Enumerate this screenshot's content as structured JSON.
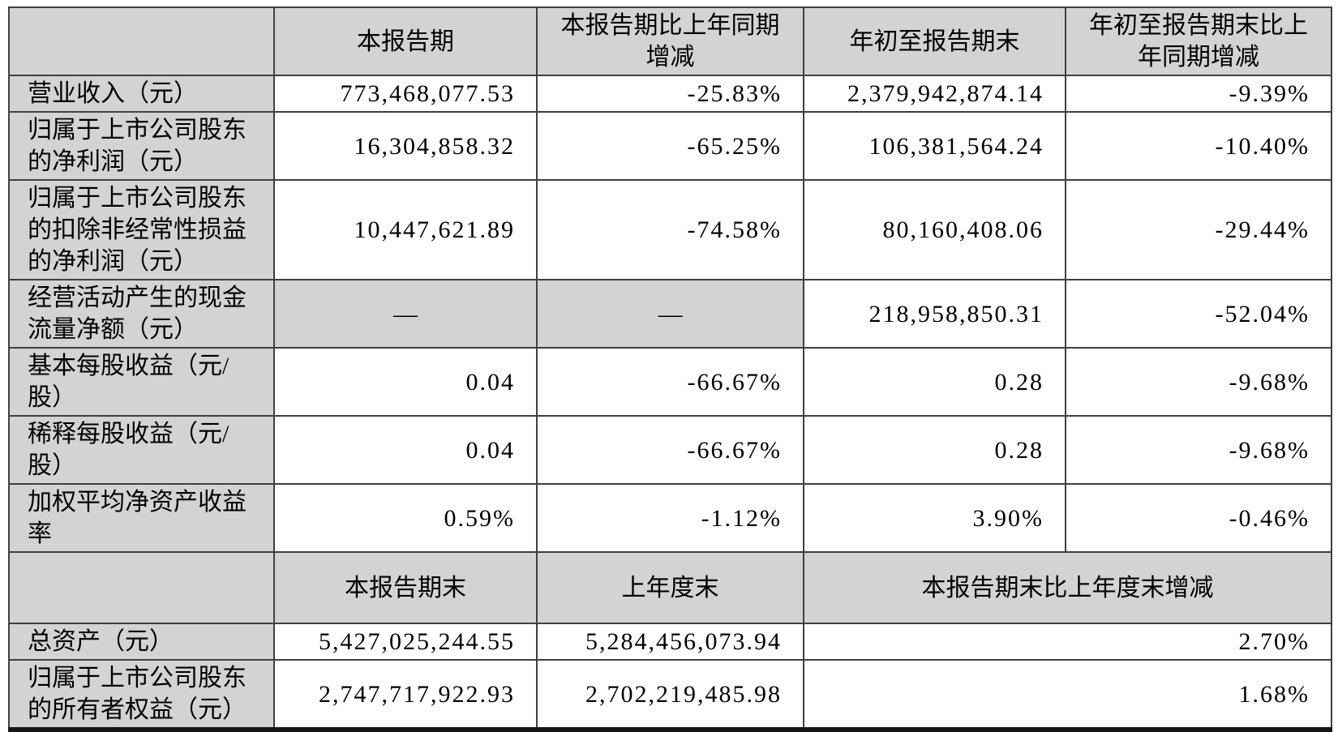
{
  "colors": {
    "header_background": "#d3d3d3",
    "grid_border": "#404040",
    "bottom_border": "#161616",
    "cell_background": "#ffffff",
    "text": "#000000"
  },
  "table": {
    "header_period": {
      "blank": "",
      "current_period": "本报告期",
      "current_period_yoy_change": "本报告期比上年同期\n增减",
      "ytd": "年初至报告期末",
      "ytd_yoy_change": "年初至报告期末比上\n年同期增减"
    },
    "period_rows": [
      {
        "label": "营业收入（元）",
        "current": "773,468,077.53",
        "current_change": "-25.83%",
        "ytd": "2,379,942,874.14",
        "ytd_change": "-9.39%"
      },
      {
        "label": "归属于上市公司股东\n的净利润（元）",
        "current": "16,304,858.32",
        "current_change": "-65.25%",
        "ytd": "106,381,564.24",
        "ytd_change": "-10.40%"
      },
      {
        "label": "归属于上市公司股东\n的扣除非经常性损益\n的净利润（元）",
        "current": "10,447,621.89",
        "current_change": "-74.58%",
        "ytd": "80,160,408.06",
        "ytd_change": "-29.44%"
      },
      {
        "label": "经营活动产生的现金\n流量净额（元）",
        "current": "—",
        "current_change": "—",
        "ytd": "218,958,850.31",
        "ytd_change": "-52.04%"
      },
      {
        "label": "基本每股收益（元/\n股）",
        "current": "0.04",
        "current_change": "-66.67%",
        "ytd": "0.28",
        "ytd_change": "-9.68%"
      },
      {
        "label": "稀释每股收益（元/\n股）",
        "current": "0.04",
        "current_change": "-66.67%",
        "ytd": "0.28",
        "ytd_change": "-9.68%"
      },
      {
        "label": "加权平均净资产收益\n率",
        "current": "0.59%",
        "current_change": "-1.12%",
        "ytd": "3.90%",
        "ytd_change": "-0.46%"
      }
    ],
    "header_balance": {
      "blank": "",
      "end_of_period": "本报告期末",
      "end_of_prev_year": "上年度末",
      "change_vs_prev_year_end": "本报告期末比上年度末增减"
    },
    "balance_rows": [
      {
        "label": "总资产（元）",
        "end_of_period": "5,427,025,244.55",
        "end_of_prev_year": "5,284,456,073.94",
        "change": "2.70%"
      },
      {
        "label": "归属于上市公司股东\n的所有者权益（元）",
        "end_of_period": "2,747,717,922.93",
        "end_of_prev_year": "2,702,219,485.98",
        "change": "1.68%"
      }
    ]
  }
}
